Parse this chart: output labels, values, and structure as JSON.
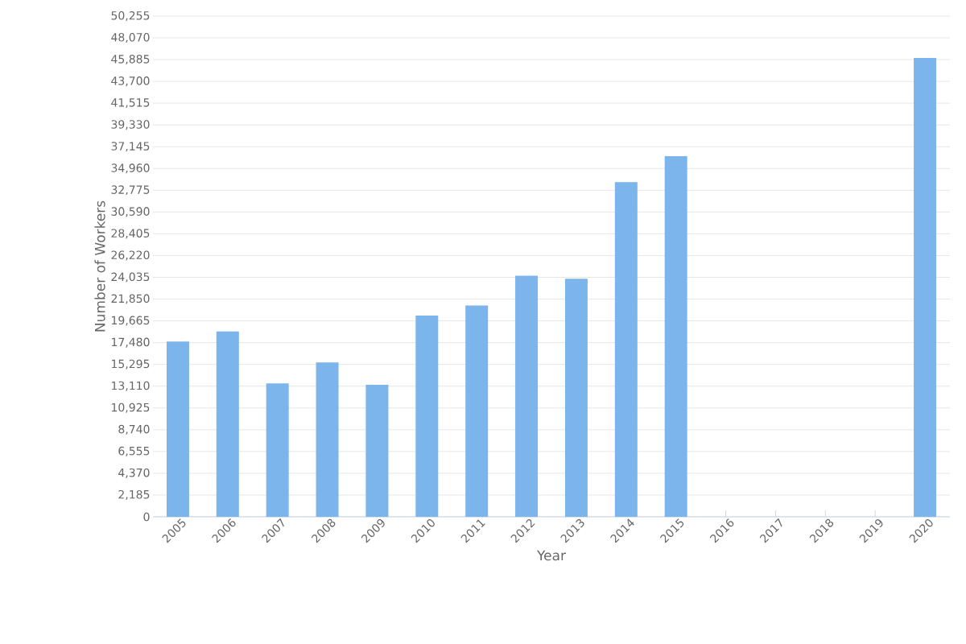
{
  "chart_data": {
    "type": "bar",
    "xlabel": "Year",
    "ylabel": "Number of Workers",
    "categories": [
      "2005",
      "2006",
      "2007",
      "2008",
      "2009",
      "2010",
      "2011",
      "2012",
      "2013",
      "2014",
      "2015",
      "2016",
      "2017",
      "2018",
      "2019",
      "2020"
    ],
    "values": [
      17600,
      18600,
      13400,
      15500,
      13250,
      20200,
      21200,
      24200,
      23900,
      33600,
      36200,
      null,
      null,
      null,
      null,
      46050
    ],
    "color": "#7cb5ec",
    "ylim": [
      0,
      50255
    ],
    "yticks": [
      0,
      {
        "value": 2185,
        "label": "2,185"
      },
      {
        "value": 4370,
        "label": "4,370"
      },
      {
        "value": 6555,
        "label": "6,555"
      },
      {
        "value": 8740,
        "label": "8,740"
      },
      {
        "value": 10925,
        "label": "10,925"
      },
      {
        "value": 13110,
        "label": "13,110"
      },
      {
        "value": 15295,
        "label": "15,295"
      },
      {
        "value": 17480,
        "label": "17,480"
      },
      {
        "value": 19665,
        "label": "19,665"
      },
      {
        "value": 21850,
        "label": "21,850"
      },
      {
        "value": 24035,
        "label": "24,035"
      },
      {
        "value": 26220,
        "label": "26,220"
      },
      {
        "value": 28405,
        "label": "28,405"
      },
      {
        "value": 30590,
        "label": "30,590"
      },
      {
        "value": 32775,
        "label": "32,775"
      },
      {
        "value": 34960,
        "label": "34,960"
      },
      {
        "value": 37145,
        "label": "37,145"
      },
      {
        "value": 39330,
        "label": "39,330"
      },
      {
        "value": 41515,
        "label": "41,515"
      },
      {
        "value": 43700,
        "label": "43,700"
      },
      {
        "value": 45885,
        "label": "45,885"
      },
      {
        "value": 48070,
        "label": "48,070"
      },
      {
        "value": 50255,
        "label": "50,255"
      }
    ],
    "grid": "y"
  }
}
